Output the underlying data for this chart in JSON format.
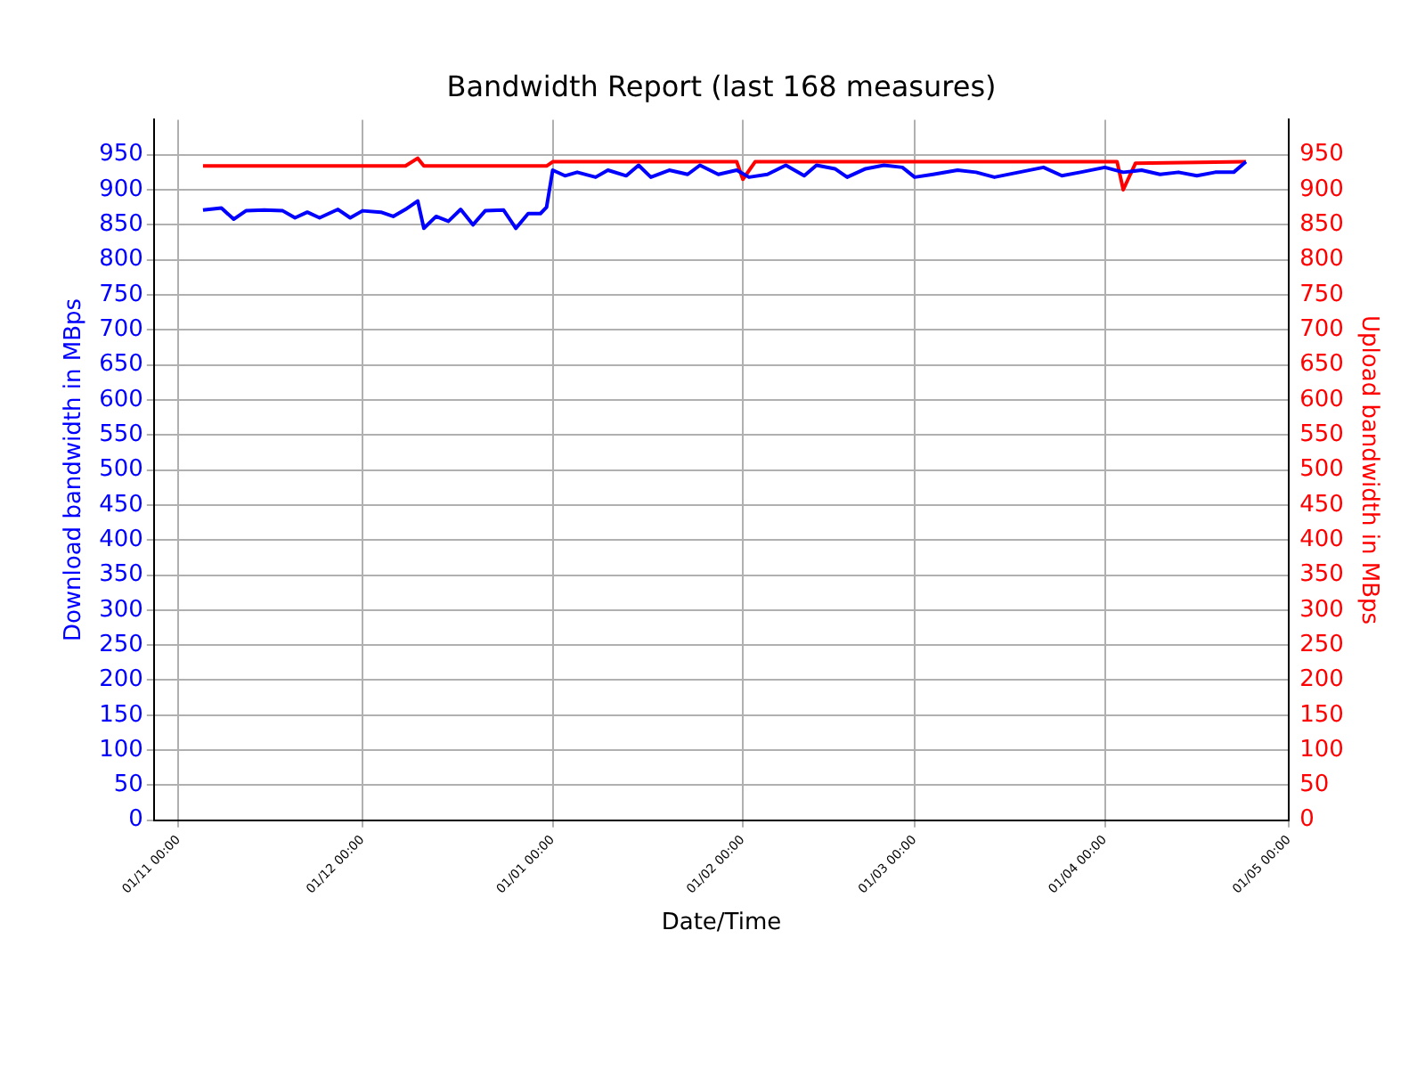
{
  "chart_data": {
    "type": "line",
    "title": "Bandwidth Report (last 168 measures)",
    "xlabel": "Date/Time",
    "ylabel": "Download bandwidth in MBps",
    "y2label": "Upload bandwidth in MBps",
    "categories": [
      null,
      null,
      null,
      null,
      "01/11 00:00",
      null,
      null,
      null,
      null,
      null,
      null,
      null,
      null,
      null,
      null,
      null,
      null,
      null,
      null,
      null,
      null,
      null,
      null,
      null,
      null,
      null,
      null,
      null,
      null,
      null,
      null,
      null,
      null,
      null,
      "01/12 00:00",
      null,
      null,
      null,
      null,
      null,
      null,
      null,
      null,
      null,
      null,
      null,
      null,
      null,
      null,
      null,
      null,
      null,
      null,
      null,
      null,
      null,
      null,
      null,
      null,
      null,
      null,
      null,
      null,
      null,
      null,
      "01/01 00:00",
      null,
      null,
      null,
      null,
      null,
      null,
      null,
      null,
      null,
      null,
      null,
      null,
      null,
      null,
      null,
      null,
      null,
      null,
      null,
      null,
      null,
      null,
      null,
      null,
      null,
      null,
      null,
      null,
      null,
      null,
      "01/02 00:00",
      null,
      null,
      null,
      null,
      null,
      null,
      null,
      null,
      null,
      null,
      null,
      null,
      null,
      null,
      null,
      null,
      null,
      null,
      null,
      null,
      null,
      null,
      null,
      null,
      null,
      null,
      null,
      "01/03 00:00",
      null,
      null,
      null,
      null,
      null,
      null,
      null,
      null,
      null,
      null,
      null,
      null,
      null,
      null,
      null,
      null,
      null,
      null,
      null,
      null,
      null,
      null,
      null,
      null,
      null,
      null,
      null,
      null,
      null,
      null,
      "01/04 00:00",
      null,
      null,
      null,
      null,
      null,
      null,
      null,
      null,
      null,
      null,
      null,
      null,
      null,
      null,
      null,
      null,
      null,
      null,
      null,
      null,
      null,
      null,
      null,
      null,
      null,
      null,
      null,
      null,
      null,
      "01/05 00:00"
    ],
    "ylim": [
      0,
      1000
    ],
    "yticks": [
      0,
      50,
      100,
      150,
      200,
      250,
      300,
      350,
      400,
      450,
      500,
      550,
      600,
      650,
      700,
      750,
      800,
      850,
      900,
      950
    ],
    "y2lim": [
      0,
      1000
    ],
    "y2ticks": [
      0,
      50,
      100,
      150,
      200,
      250,
      300,
      350,
      400,
      450,
      500,
      550,
      600,
      650,
      700,
      750,
      800,
      850,
      900,
      950
    ],
    "grid": true,
    "legend": false,
    "marker": "none",
    "line_style": "solid",
    "series": [
      {
        "color": "#0000ff",
        "values": [
          null,
          null,
          null,
          null,
          null,
          null,
          null,
          null,
          871,
          null,
          null,
          874,
          null,
          858,
          null,
          870,
          null,
          null,
          871,
          null,
          null,
          870,
          null,
          860,
          null,
          868,
          null,
          860,
          null,
          null,
          872,
          null,
          860,
          null,
          870,
          null,
          null,
          868,
          null,
          862,
          null,
          872,
          null,
          884,
          845,
          null,
          862,
          null,
          855,
          null,
          872,
          null,
          850,
          null,
          870,
          null,
          null,
          871,
          null,
          845,
          null,
          866,
          null,
          866,
          875,
          928,
          null,
          920,
          null,
          925,
          null,
          null,
          918,
          null,
          928,
          null,
          null,
          920,
          null,
          935,
          null,
          918,
          null,
          null,
          928,
          null,
          null,
          922,
          null,
          935,
          null,
          null,
          922,
          null,
          null,
          928,
          null,
          918,
          null,
          null,
          922,
          null,
          null,
          935,
          null,
          null,
          920,
          null,
          935,
          null,
          null,
          930,
          null,
          918,
          null,
          null,
          930,
          null,
          null,
          935,
          null,
          null,
          932,
          null,
          918,
          null,
          null,
          922,
          null,
          null,
          null,
          928,
          null,
          null,
          925,
          null,
          null,
          918,
          null,
          null,
          null,
          925,
          null,
          null,
          null,
          932,
          null,
          null,
          920,
          null,
          null,
          925,
          null,
          null,
          null,
          932,
          null,
          null,
          925,
          null,
          null,
          928,
          null,
          null,
          922,
          null,
          null,
          925,
          null,
          null,
          920,
          null,
          null,
          925,
          null,
          null,
          925,
          null,
          940,
          null,
          null,
          null,
          null,
          null,
          null,
          null
        ]
      },
      {
        "color": "#ff0000",
        "axis": "y2",
        "values": [
          null,
          null,
          null,
          null,
          null,
          null,
          null,
          null,
          934,
          null,
          null,
          null,
          null,
          null,
          null,
          null,
          null,
          null,
          null,
          null,
          null,
          null,
          null,
          null,
          null,
          null,
          null,
          null,
          null,
          null,
          null,
          null,
          null,
          null,
          null,
          null,
          null,
          null,
          null,
          null,
          null,
          934,
          null,
          945,
          934,
          null,
          null,
          null,
          null,
          null,
          null,
          null,
          null,
          null,
          null,
          null,
          null,
          null,
          null,
          null,
          null,
          null,
          null,
          null,
          934,
          940,
          null,
          null,
          null,
          null,
          null,
          null,
          null,
          null,
          null,
          null,
          null,
          null,
          null,
          null,
          null,
          null,
          null,
          null,
          null,
          null,
          null,
          null,
          null,
          null,
          null,
          null,
          null,
          null,
          null,
          940,
          915,
          null,
          940,
          null,
          null,
          null,
          null,
          null,
          null,
          null,
          null,
          null,
          null,
          null,
          null,
          null,
          null,
          null,
          null,
          null,
          null,
          null,
          null,
          null,
          null,
          null,
          null,
          null,
          null,
          null,
          null,
          null,
          null,
          null,
          null,
          null,
          null,
          null,
          null,
          null,
          null,
          null,
          null,
          null,
          null,
          null,
          null,
          null,
          null,
          null,
          null,
          null,
          null,
          null,
          null,
          null,
          null,
          null,
          null,
          null,
          null,
          940,
          900,
          null,
          938,
          null,
          null,
          null,
          null,
          null,
          null,
          null,
          null,
          null,
          null,
          null,
          null,
          null,
          null,
          null,
          null,
          null,
          940,
          null,
          null,
          null,
          null,
          null,
          null,
          null
        ]
      }
    ]
  }
}
